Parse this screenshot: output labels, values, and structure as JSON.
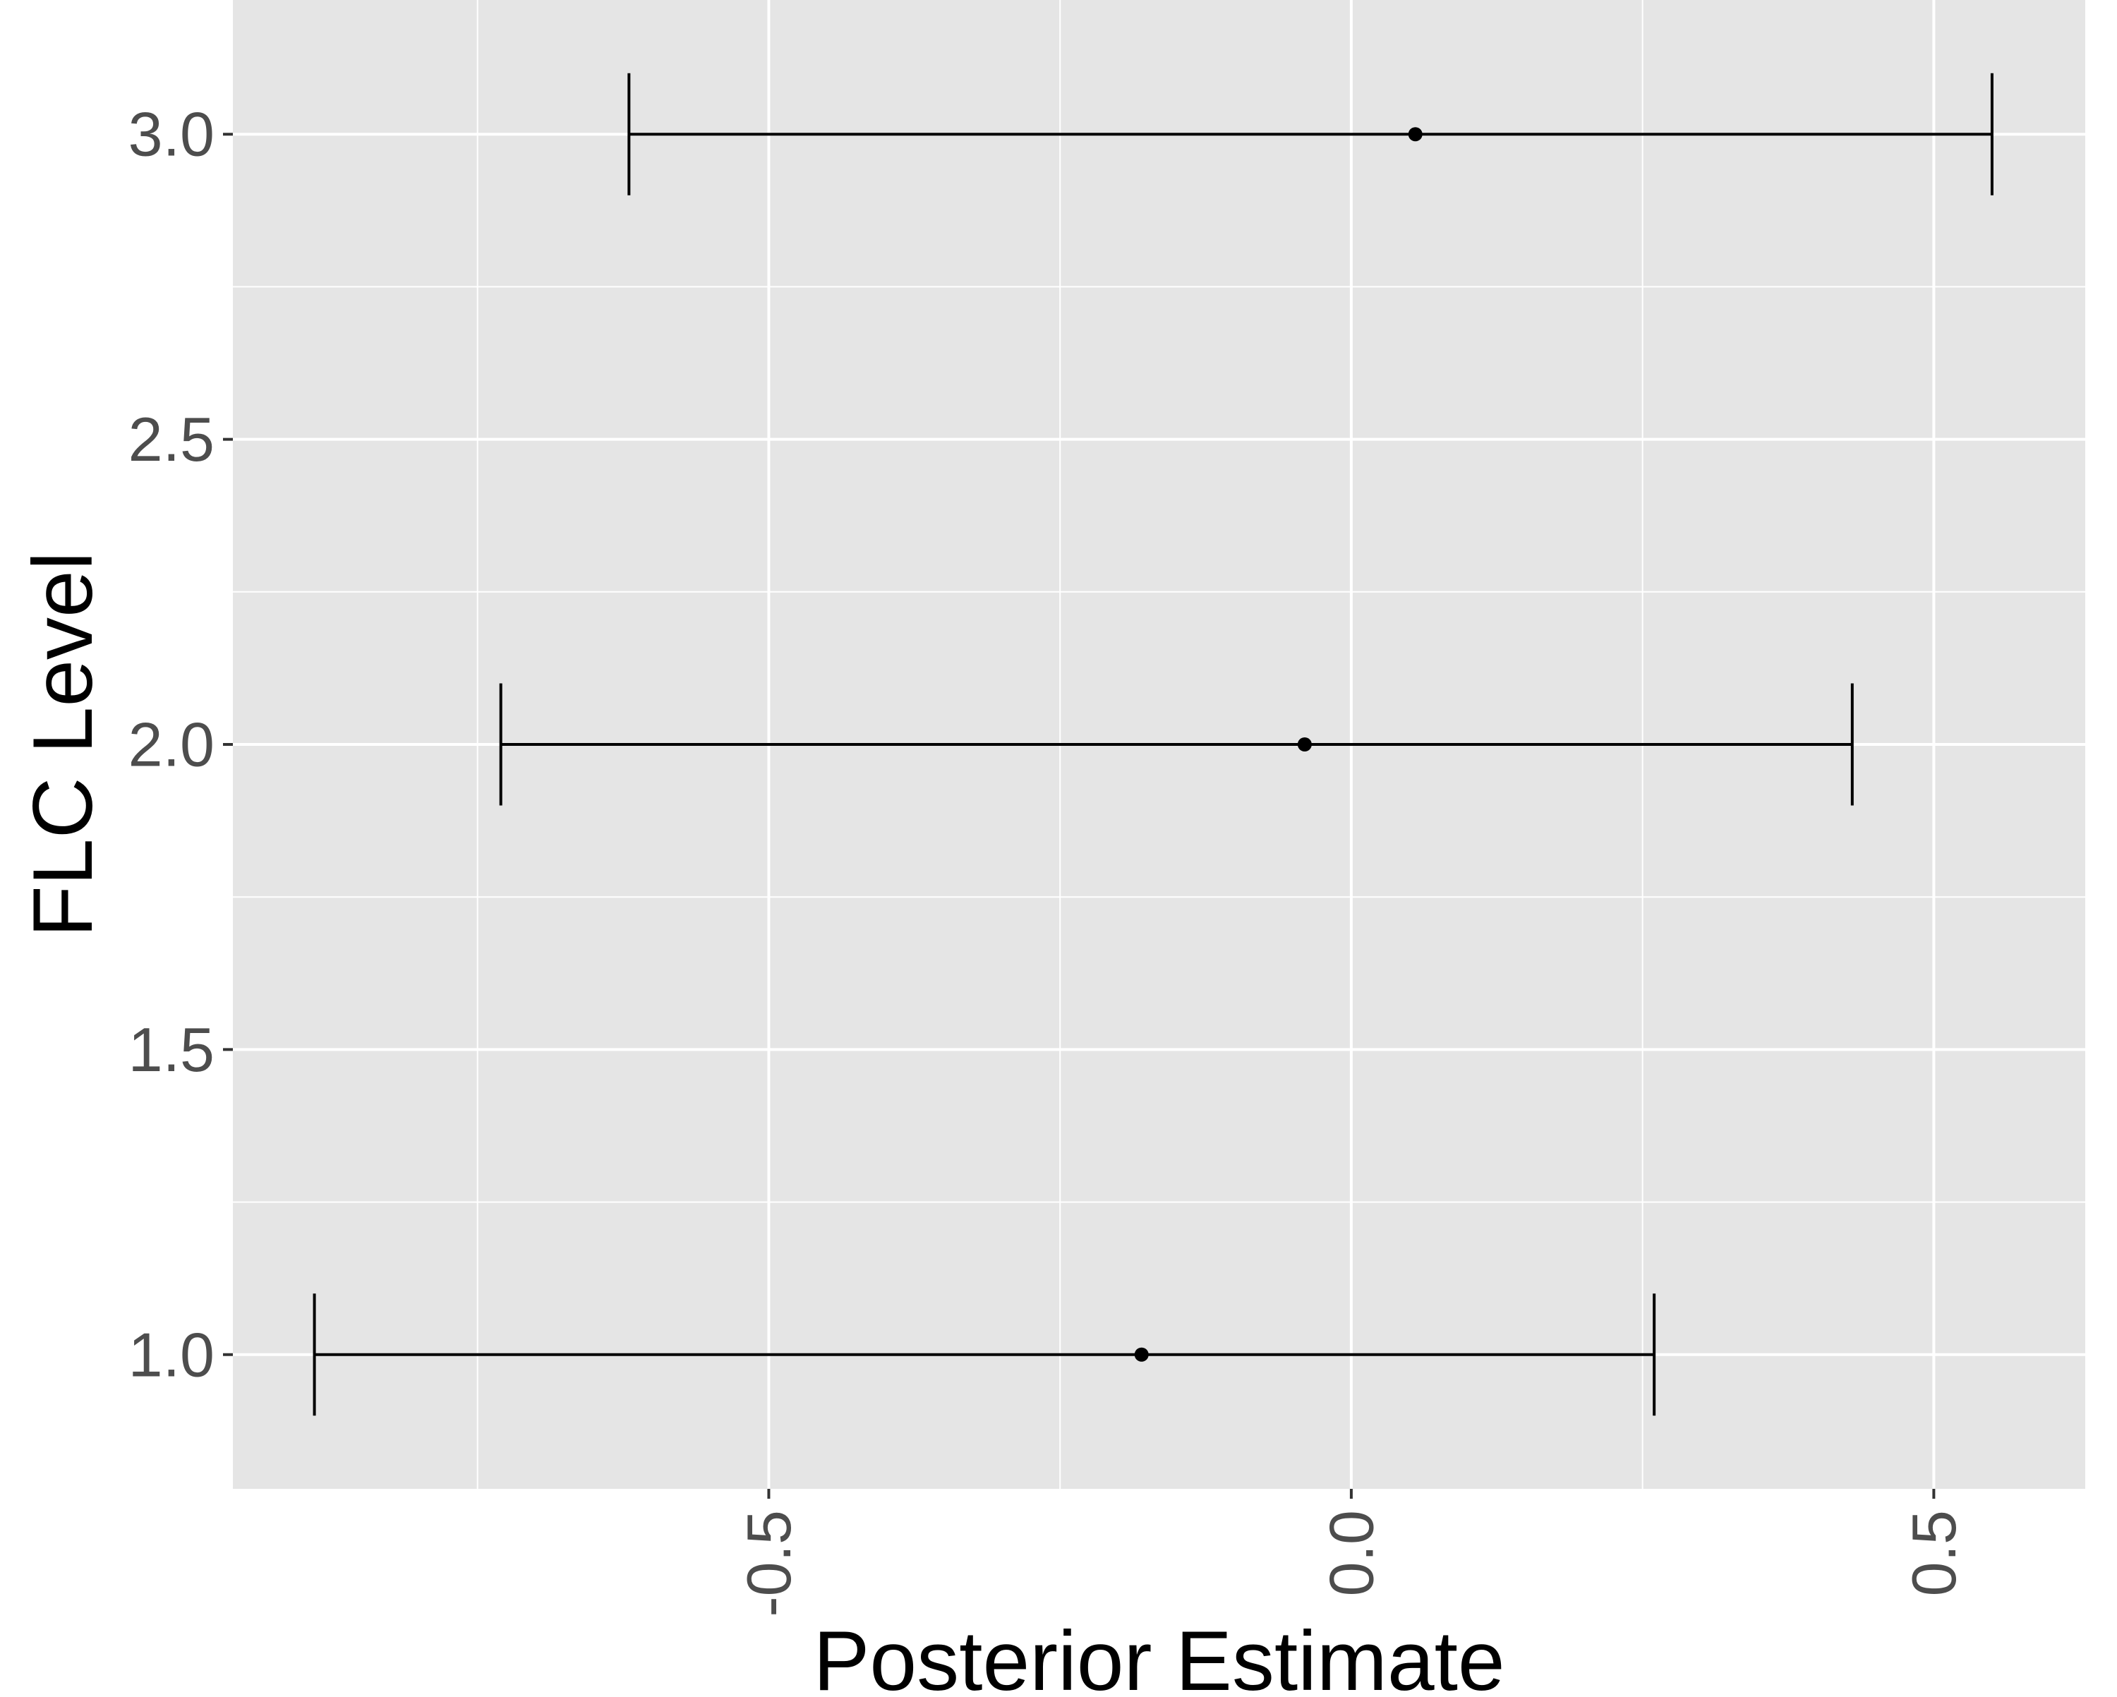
{
  "chart_data": {
    "type": "errorbar",
    "xlabel": "Posterior Estimate",
    "ylabel": "FLC Level",
    "xlim": [
      -0.96,
      0.63
    ],
    "ylim": [
      0.78,
      3.22
    ],
    "x_ticks": [
      -0.5,
      0.0,
      0.5
    ],
    "x_tick_labels": [
      "-0.5",
      "0.0",
      "0.5"
    ],
    "y_ticks": [
      1.0,
      1.5,
      2.0,
      2.5,
      3.0
    ],
    "y_tick_labels": [
      "1.0",
      "1.5",
      "2.0",
      "2.5",
      "3.0"
    ],
    "grid": true,
    "legend": "none",
    "points": [
      {
        "y": 1.0,
        "estimate": -0.18,
        "lower": -0.89,
        "upper": 0.26
      },
      {
        "y": 2.0,
        "estimate": -0.04,
        "lower": -0.73,
        "upper": 0.43
      },
      {
        "y": 3.0,
        "estimate": 0.055,
        "lower": -0.62,
        "upper": 0.55
      }
    ],
    "colors": {
      "panel_background": "#e5e5e5",
      "grid": "#ffffff",
      "marks": "#000000",
      "tick_text": "#4d4d4d",
      "axis_title": "#000000"
    }
  }
}
